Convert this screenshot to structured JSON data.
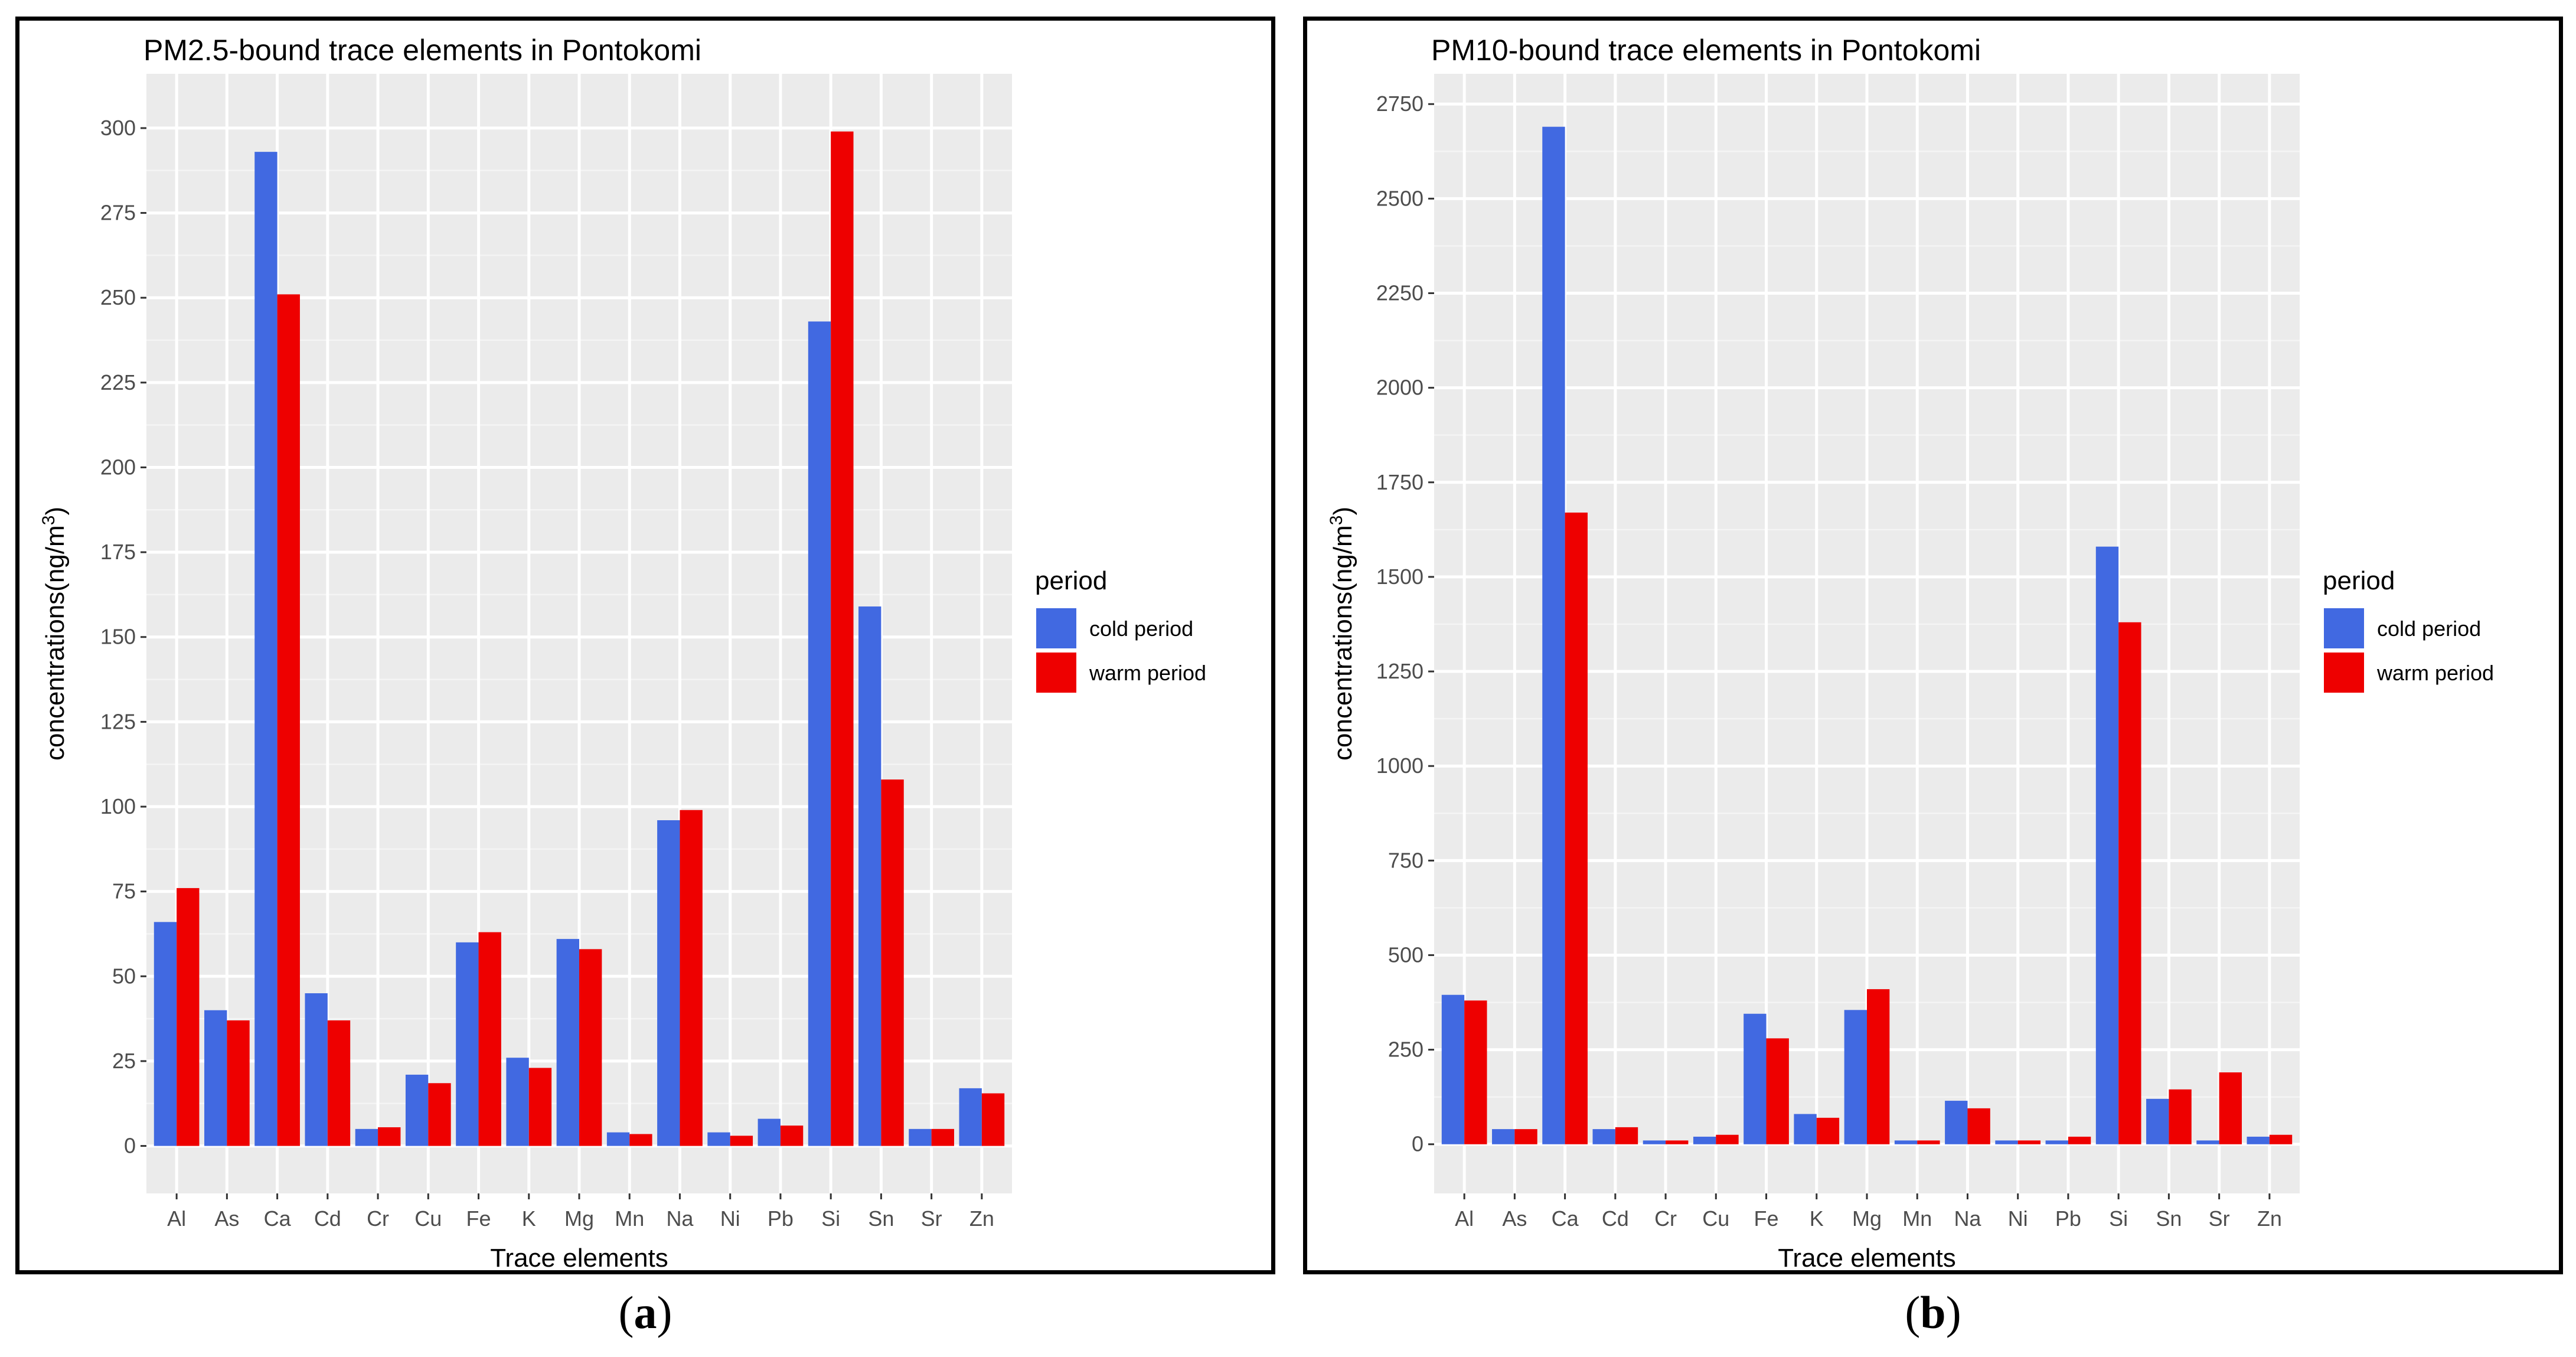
{
  "colors": {
    "cold": "#4169E1",
    "warm": "#EE0000",
    "panel_bg": "#EBEBEB"
  },
  "captions": [
    {
      "open": "(",
      "letter": "a",
      "close": ")"
    },
    {
      "open": "(",
      "letter": "b",
      "close": ")"
    }
  ],
  "chart_data": [
    {
      "type": "bar",
      "title": "PM2.5-bound trace elements in Pontokomi",
      "xlabel": "Trace elements",
      "ylabel": "concentrations(ng/m3)",
      "ylabel_main": "concentrations(ng/m",
      "ylabel_sup": "3",
      "ylabel_close": ")",
      "ylim": [
        -14,
        316
      ],
      "yticks": [
        0,
        25,
        50,
        75,
        100,
        125,
        150,
        175,
        200,
        225,
        250,
        275,
        300
      ],
      "categories": [
        "Al",
        "As",
        "Ca",
        "Cd",
        "Cr",
        "Cu",
        "Fe",
        "K",
        "Mg",
        "Mn",
        "Na",
        "Ni",
        "Pb",
        "Si",
        "Sn",
        "Sr",
        "Zn"
      ],
      "legend": {
        "title": "period",
        "position": "right"
      },
      "series": [
        {
          "name": "cold period",
          "values": [
            66,
            40,
            293,
            45,
            5,
            21,
            60,
            26,
            61,
            4,
            96,
            4,
            8,
            243,
            159,
            5,
            17
          ]
        },
        {
          "name": "warm period",
          "values": [
            76,
            37,
            251,
            37,
            5.5,
            18.5,
            63,
            23,
            58,
            3.5,
            99,
            3,
            6,
            299,
            108,
            5,
            15.5
          ]
        }
      ]
    },
    {
      "type": "bar",
      "title": "PM10-bound trace elements in Pontokomi",
      "xlabel": "Trace elements",
      "ylabel": "concentrations(ng/m3)",
      "ylabel_main": "concentrations(ng/m",
      "ylabel_sup": "3",
      "ylabel_close": ")",
      "ylim": [
        -130,
        2830
      ],
      "yticks": [
        0,
        250,
        500,
        750,
        1000,
        1250,
        1500,
        1750,
        2000,
        2250,
        2500,
        2750
      ],
      "categories": [
        "Al",
        "As",
        "Ca",
        "Cd",
        "Cr",
        "Cu",
        "Fe",
        "K",
        "Mg",
        "Mn",
        "Na",
        "Ni",
        "Pb",
        "Si",
        "Sn",
        "Sr",
        "Zn"
      ],
      "legend": {
        "title": "period",
        "position": "right"
      },
      "series": [
        {
          "name": "cold period",
          "values": [
            395,
            40,
            2690,
            40,
            10,
            20,
            345,
            80,
            355,
            10,
            115,
            10,
            10,
            1580,
            120,
            10,
            20
          ]
        },
        {
          "name": "warm period",
          "values": [
            380,
            40,
            1670,
            45,
            10,
            25,
            280,
            70,
            410,
            10,
            95,
            10,
            20,
            1380,
            145,
            190,
            25
          ]
        }
      ]
    }
  ]
}
